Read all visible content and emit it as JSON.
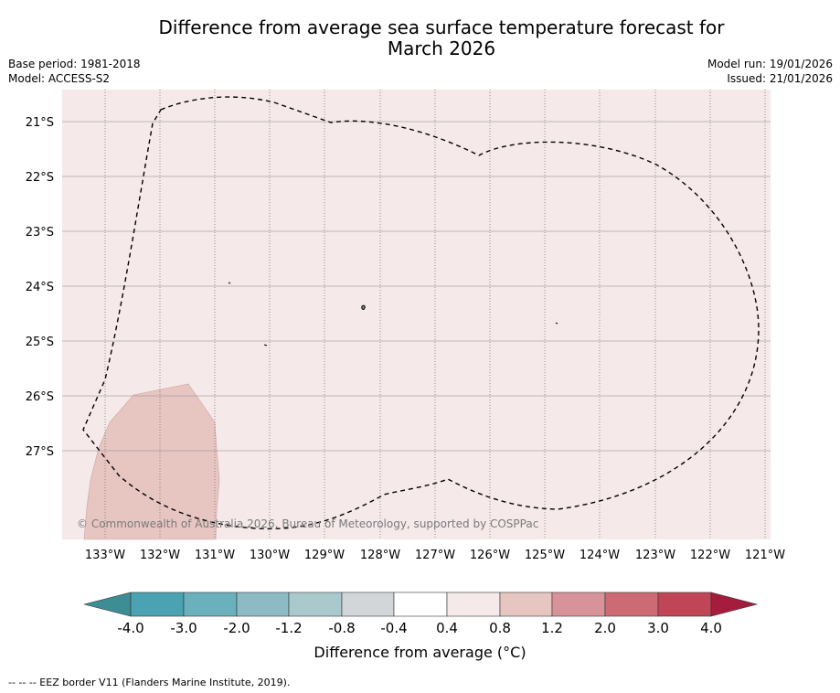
{
  "title_line1": "Difference from average sea surface temperature forecast for",
  "title_line2": "March 2026",
  "base_period": "Base period: 1981-2018",
  "model": "Model: ACCESS-S2",
  "model_run": "Model run: 19/01/2026",
  "issued": "Issued: 21/01/2026",
  "copyright": "© Commonwealth of Australia 2026, Bureau of Meteorology, supported by COSPPac",
  "footnote": "--  --  -- EEZ border V11 (Flanders Marine Institute, 2019).",
  "lat_labels": [
    "21°S",
    "22°S",
    "23°S",
    "24°S",
    "25°S",
    "26°S",
    "27°S"
  ],
  "lon_labels": [
    "133°W",
    "132°W",
    "131°W",
    "130°W",
    "129°W",
    "128°W",
    "127°W",
    "126°W",
    "125°W",
    "124°W",
    "123°W",
    "122°W",
    "121°W"
  ],
  "colorbar": {
    "title": "Difference from average (°C)",
    "ticks": [
      "-4.0",
      "-3.0",
      "-2.0",
      "-1.2",
      "-0.8",
      "-0.4",
      "0.4",
      "0.8",
      "1.2",
      "2.0",
      "3.0",
      "4.0"
    ],
    "colors": [
      "#4aa2b3",
      "#6bb0bd",
      "#8cbbc6",
      "#a9c9cd",
      "#d2d6d9",
      "#ffffff",
      "#f5e9e9",
      "#e7c6c2",
      "#d8939a",
      "#cd6b74",
      "#c04556"
    ],
    "under_color": "#3d8d95",
    "over_color": "#a61c3c"
  },
  "map_colors": {
    "background_anomaly": "#f5e9e9",
    "warm_patch_anomaly": "#e7c6c2"
  }
}
